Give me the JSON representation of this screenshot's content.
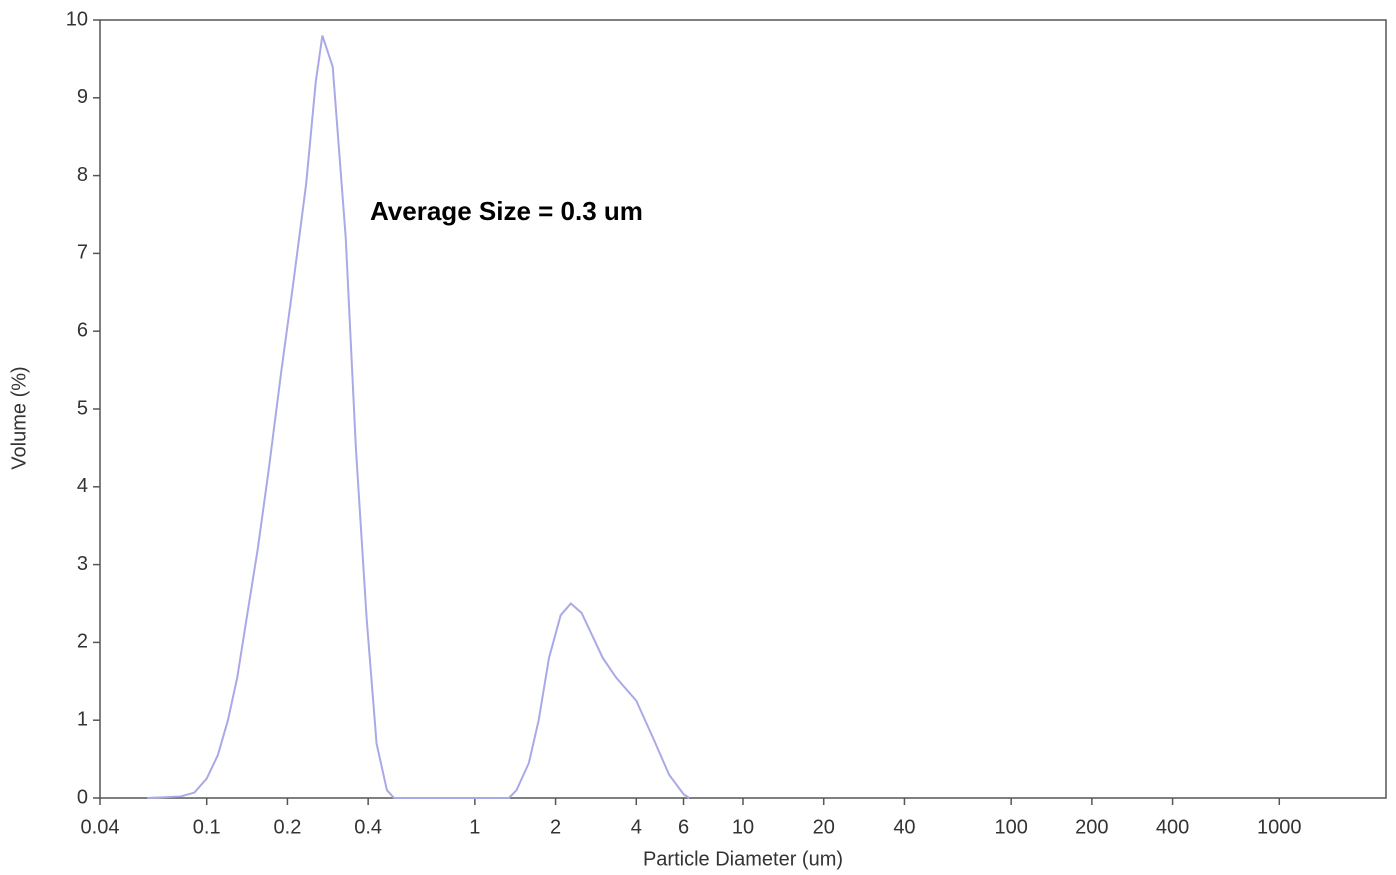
{
  "chart_data": {
    "type": "line",
    "xlabel": "Particle Diameter (um)",
    "ylabel": "Volume (%)",
    "annotation": "Average Size = 0.3 um",
    "xscale": "log",
    "x": [
      0.06,
      0.08,
      0.09,
      0.1,
      0.11,
      0.12,
      0.13,
      0.14,
      0.155,
      0.17,
      0.19,
      0.21,
      0.235,
      0.255,
      0.27,
      0.295,
      0.33,
      0.36,
      0.395,
      0.43,
      0.47,
      0.5,
      1.34,
      1.43,
      1.59,
      1.73,
      1.89,
      2.09,
      2.28,
      2.5,
      3.0,
      3.36,
      4.0,
      4.65,
      5.3,
      6.0,
      6.3
    ],
    "series": [
      {
        "name": "Volume",
        "color": "#a9a9e8",
        "values": [
          0,
          0.02,
          0.07,
          0.25,
          0.55,
          1.0,
          1.55,
          2.25,
          3.2,
          4.2,
          5.5,
          6.6,
          7.9,
          9.2,
          9.8,
          9.4,
          7.2,
          4.5,
          2.3,
          0.7,
          0.1,
          0,
          0,
          0.1,
          0.45,
          1.0,
          1.8,
          2.35,
          2.5,
          2.38,
          1.8,
          1.55,
          1.25,
          0.75,
          0.3,
          0.05,
          0
        ]
      }
    ],
    "xlim": [
      0.04,
      2500
    ],
    "ylim": [
      0,
      10
    ],
    "xticks": [
      0.04,
      0.1,
      0.2,
      0.4,
      1,
      2,
      4,
      6,
      10,
      20,
      40,
      100,
      200,
      400,
      1000
    ],
    "yticks": [
      0,
      1,
      2,
      3,
      4,
      5,
      6,
      7,
      8,
      9,
      10
    ]
  }
}
